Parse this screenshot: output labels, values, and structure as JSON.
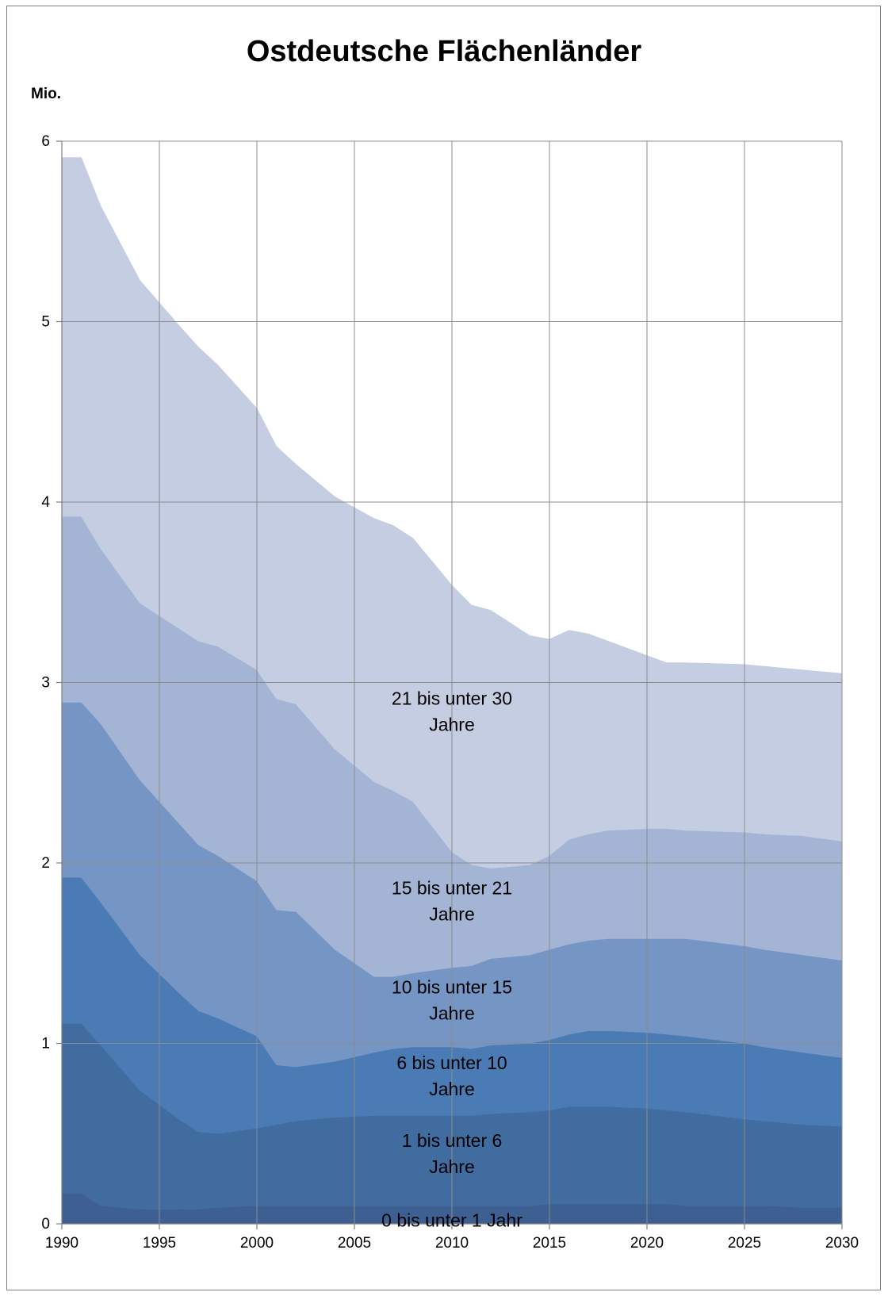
{
  "chart_data": {
    "type": "area",
    "stacked": true,
    "title": "Ostdeutsche Flächenländer",
    "ylabel": "Mio.",
    "xlabel": "",
    "xlim": [
      1990,
      2030
    ],
    "ylim": [
      0,
      6
    ],
    "x_ticks": [
      "1990",
      "1995",
      "2000",
      "2005",
      "2010",
      "2015",
      "2020",
      "2025",
      "2030"
    ],
    "y_ticks": [
      "0",
      "1",
      "2",
      "3",
      "4",
      "5",
      "6"
    ],
    "grid": true,
    "x": [
      1990,
      1991,
      1992,
      1994,
      1996,
      1997,
      1998,
      2000,
      2001,
      2002,
      2004,
      2006,
      2007,
      2008,
      2010,
      2011,
      2012,
      2014,
      2015,
      2016,
      2017,
      2018,
      2020,
      2021,
      2022,
      2025,
      2026,
      2028,
      2030
    ],
    "series": [
      {
        "name": "0 bis unter 1 Jahr",
        "color": "#3d5f91",
        "values": [
          0.17,
          0.17,
          0.1,
          0.08,
          0.08,
          0.08,
          0.09,
          0.1,
          0.1,
          0.1,
          0.1,
          0.1,
          0.1,
          0.1,
          0.1,
          0.1,
          0.1,
          0.1,
          0.11,
          0.11,
          0.11,
          0.11,
          0.11,
          0.11,
          0.1,
          0.1,
          0.1,
          0.09,
          0.09
        ]
      },
      {
        "name": "1 bis unter 6 Jahre",
        "color": "#416ca0",
        "values": [
          0.94,
          0.94,
          0.89,
          0.66,
          0.5,
          0.43,
          0.41,
          0.43,
          0.45,
          0.47,
          0.49,
          0.5,
          0.5,
          0.5,
          0.5,
          0.5,
          0.51,
          0.52,
          0.52,
          0.54,
          0.54,
          0.54,
          0.53,
          0.52,
          0.52,
          0.48,
          0.47,
          0.46,
          0.45
        ]
      },
      {
        "name": "6 bis unter 10 Jahre",
        "color": "#4a7bb5",
        "values": [
          0.81,
          0.81,
          0.79,
          0.75,
          0.7,
          0.67,
          0.64,
          0.51,
          0.33,
          0.3,
          0.31,
          0.35,
          0.37,
          0.38,
          0.38,
          0.37,
          0.38,
          0.38,
          0.39,
          0.4,
          0.42,
          0.42,
          0.42,
          0.42,
          0.42,
          0.42,
          0.41,
          0.4,
          0.38
        ]
      },
      {
        "name": "10 bis unter 15 Jahre",
        "color": "#7595c5",
        "values": [
          0.97,
          0.97,
          0.99,
          0.97,
          0.94,
          0.92,
          0.9,
          0.86,
          0.86,
          0.86,
          0.62,
          0.42,
          0.4,
          0.41,
          0.44,
          0.46,
          0.48,
          0.49,
          0.5,
          0.5,
          0.5,
          0.51,
          0.52,
          0.53,
          0.54,
          0.54,
          0.54,
          0.54,
          0.54
        ]
      },
      {
        "name": "15 bis unter 21 Jahre",
        "color": "#a3b4d5",
        "values": [
          1.03,
          1.03,
          0.97,
          0.98,
          1.08,
          1.13,
          1.16,
          1.17,
          1.17,
          1.15,
          1.11,
          1.08,
          1.03,
          0.95,
          0.64,
          0.56,
          0.5,
          0.5,
          0.52,
          0.58,
          0.59,
          0.6,
          0.61,
          0.61,
          0.6,
          0.63,
          0.64,
          0.66,
          0.66
        ]
      },
      {
        "name": "21 bis unter 30 Jahre",
        "color": "#c4cde2",
        "values": [
          1.99,
          1.99,
          1.9,
          1.79,
          1.68,
          1.63,
          1.56,
          1.45,
          1.4,
          1.33,
          1.4,
          1.46,
          1.47,
          1.46,
          1.48,
          1.44,
          1.43,
          1.27,
          1.2,
          1.16,
          1.11,
          1.05,
          0.96,
          0.92,
          0.93,
          0.93,
          0.93,
          0.92,
          0.93
        ]
      }
    ],
    "band_labels": [
      {
        "lines": [
          "21 bis unter 30",
          "Jahre"
        ],
        "x": 2010,
        "y": 2.84
      },
      {
        "lines": [
          "15 bis unter 21",
          "Jahre"
        ],
        "x": 2010,
        "y": 1.79
      },
      {
        "lines": [
          "10 bis unter 15",
          "Jahre"
        ],
        "x": 2010,
        "y": 1.24
      },
      {
        "lines": [
          "6 bis unter 10",
          "Jahre"
        ],
        "x": 2010,
        "y": 0.82
      },
      {
        "lines": [
          "1 bis unter 6",
          "Jahre"
        ],
        "x": 2010,
        "y": 0.39
      },
      {
        "lines": [
          "0 bis unter 1 Jahr"
        ],
        "x": 2010,
        "y": 0.02
      }
    ]
  }
}
